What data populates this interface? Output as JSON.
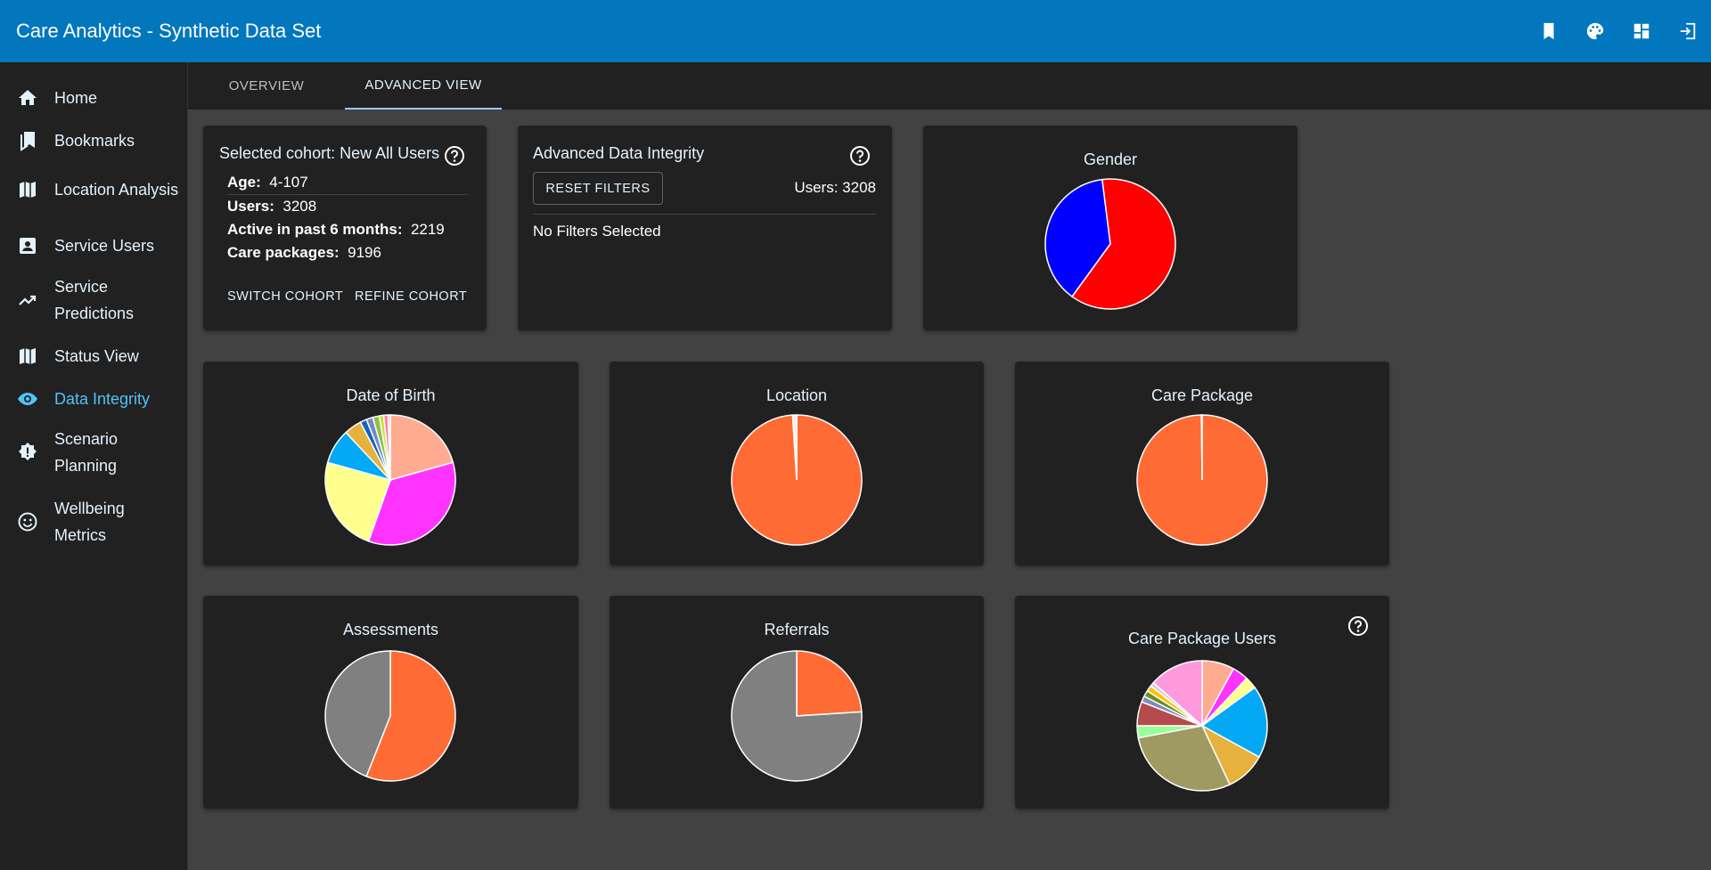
{
  "app": {
    "title": "Care Analytics - Synthetic Data Set"
  },
  "appbar_actions": [
    {
      "name": "bookmark-icon"
    },
    {
      "name": "palette-icon"
    },
    {
      "name": "dashboard-icon"
    },
    {
      "name": "logout-icon"
    }
  ],
  "sidebar": {
    "items": [
      {
        "label": "Home",
        "icon": "home-icon",
        "active": false
      },
      {
        "label": "Bookmarks",
        "icon": "bookmarks-icon",
        "active": false
      },
      {
        "label": "Location Analysis",
        "icon": "map-icon",
        "active": false
      },
      {
        "label": "Service Users",
        "icon": "contact-card-icon",
        "active": false
      },
      {
        "label": "Service Predictions",
        "icon": "trending-up-icon",
        "active": false
      },
      {
        "label": "Status View",
        "icon": "map-icon",
        "active": false
      },
      {
        "label": "Data Integrity",
        "icon": "eye-icon",
        "active": true
      },
      {
        "label": "Scenario Planning",
        "icon": "badge-alert-icon",
        "active": false
      },
      {
        "label": "Wellbeing Metrics",
        "icon": "smile-icon",
        "active": false
      }
    ]
  },
  "tabs": [
    {
      "label": "OVERVIEW",
      "active": false
    },
    {
      "label": "ADVANCED VIEW",
      "active": true
    }
  ],
  "cohort": {
    "title": "Selected cohort: New All Users",
    "age_label": "Age:",
    "age_value": "4-107",
    "users_label": "Users:",
    "users_value": "3208",
    "active_label": "Active in past 6 months:",
    "active_value": "2219",
    "packages_label": "Care packages:",
    "packages_value": "9196",
    "switch_label": "SWITCH COHORT",
    "refine_label": "REFINE COHORT"
  },
  "integrity": {
    "title": "Advanced Data Integrity",
    "reset_label": "RESET FILTERS",
    "users_text": "Users: 3208",
    "filters_text": "No Filters Selected"
  },
  "colors": {
    "appbar": "#0277bd",
    "active_nav": "#4fc3f7",
    "card": "#212121",
    "background": "#424242"
  },
  "chart_data": [
    {
      "type": "pie",
      "title": "Gender",
      "values": [
        38,
        62
      ],
      "colors": [
        "#0000ff",
        "#ff0000"
      ],
      "start_angle": 216
    },
    {
      "type": "pie",
      "title": "Date of Birth",
      "values": [
        19,
        32,
        22,
        8,
        4,
        1.5,
        1.5,
        1.5,
        1,
        1,
        0.5
      ],
      "colors": [
        "#ffab91",
        "#ff33ff",
        "#ffff8d",
        "#03a9f4",
        "#e6b13c",
        "#1565c0",
        "#7986cb",
        "#8bc34a",
        "#cddc39",
        "#ff80ab",
        "#bdbdbd"
      ],
      "start_angle": 0
    },
    {
      "type": "pie",
      "title": "Location",
      "values": [
        99,
        1
      ],
      "colors": [
        "#ff6b35",
        "#eeeeee"
      ],
      "start_angle": 0
    },
    {
      "type": "pie",
      "title": "Care Package",
      "values": [
        99.8,
        0.2
      ],
      "colors": [
        "#ff6b35",
        "#eeeeee"
      ],
      "start_angle": 0
    },
    {
      "type": "pie",
      "title": "Assessments",
      "values": [
        56,
        44
      ],
      "colors": [
        "#ff6b35",
        "#808080"
      ],
      "start_angle": 0
    },
    {
      "type": "pie",
      "title": "Referrals",
      "values": [
        24,
        76
      ],
      "colors": [
        "#ff6b35",
        "#808080"
      ],
      "start_angle": 0
    },
    {
      "type": "pie",
      "title": "Care Package Users",
      "values": [
        8,
        4,
        3,
        18,
        10,
        29,
        3,
        6,
        1.5,
        1.5,
        1.5,
        1,
        13.5
      ],
      "colors": [
        "#ffab91",
        "#ff33ff",
        "#ffff8d",
        "#03a9f4",
        "#e6b13c",
        "#9e9a62",
        "#99ff99",
        "#b54b4b",
        "#7b8cbf",
        "#6b8e23",
        "#ffc107",
        "#cfcfcf",
        "#ff99dd"
      ],
      "start_angle": 0
    }
  ]
}
